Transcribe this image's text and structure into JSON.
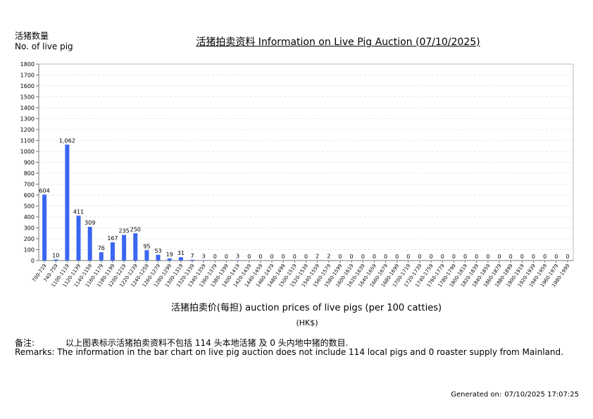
{
  "header": {
    "y_label_zh": "活猪数量",
    "y_label_en": "No. of live pig",
    "title": "活猪拍卖资料 Information on Live Pig Auction (07/10/2025)"
  },
  "axis": {
    "x_label": "活猪拍卖价(每担) auction prices of live pigs (per 100 catties)",
    "currency": "(HK$)"
  },
  "remarks": {
    "label_zh": "备注:",
    "text_zh": "以上图表标示活猪拍卖资料不包括 114 头本地活猪 及 0 头内地中猪的数目.",
    "text_en": "Remarks: The information in the bar chart on live pig auction does not include 114 local pigs and 0 roaster supply from Mainland."
  },
  "footer": {
    "generated_label": "Generated on:",
    "generated_value": "07/10/2025 17:07:25"
  },
  "chart_data": {
    "type": "bar",
    "title": "活猪拍卖资料 Information on Live Pig Auction (07/10/2025)",
    "xlabel": "活猪拍卖价(每担) auction prices of live pigs (per 100 catties)",
    "ylabel": "活猪数量 No. of live pig",
    "ylim": [
      0,
      1800
    ],
    "yticks": [
      0,
      100,
      200,
      300,
      400,
      500,
      600,
      700,
      800,
      900,
      1000,
      1100,
      1200,
      1300,
      1400,
      1500,
      1600,
      1700,
      1800
    ],
    "grid": true,
    "bar_color": "#3b66f0",
    "categories": [
      "700-719",
      "740-759",
      "1100-1119",
      "1120-1139",
      "1140-1159",
      "1160-1179",
      "1180-1199",
      "1200-1219",
      "1220-1239",
      "1240-1259",
      "1260-1279",
      "1280-1299",
      "1300-1319",
      "1320-1339",
      "1340-1359",
      "1360-1379",
      "1380-1399",
      "1400-1419",
      "1420-1439",
      "1440-1459",
      "1460-1479",
      "1480-1499",
      "1500-1519",
      "1520-1539",
      "1540-1559",
      "1560-1579",
      "1580-1599",
      "1600-1619",
      "1620-1639",
      "1640-1659",
      "1660-1679",
      "1680-1699",
      "1700-1719",
      "1720-1739",
      "1740-1759",
      "1760-1779",
      "1780-1799",
      "1800-1819",
      "1820-1839",
      "1840-1859",
      "1860-1879",
      "1880-1899",
      "1900-1919",
      "1920-1939",
      "1940-1959",
      "1960-1979",
      "1980-1999"
    ],
    "values": [
      604,
      10,
      1062,
      411,
      309,
      76,
      167,
      235,
      250,
      95,
      53,
      19,
      31,
      7,
      3,
      0,
      0,
      3,
      0,
      0,
      0,
      0,
      0,
      0,
      2,
      2,
      0,
      0,
      0,
      0,
      0,
      0,
      0,
      0,
      0,
      0,
      0,
      0,
      0,
      0,
      0,
      0,
      0,
      0,
      0,
      0,
      0
    ],
    "value_labels": [
      "604",
      "10",
      "1,062",
      "411",
      "309",
      "76",
      "167",
      "235",
      "250",
      "95",
      "53",
      "19",
      "31",
      "7",
      "3",
      "0",
      "0",
      "3",
      "0",
      "0",
      "0",
      "0",
      "0",
      "0",
      "2",
      "2",
      "0",
      "0",
      "0",
      "0",
      "0",
      "0",
      "0",
      "0",
      "0",
      "0",
      "0",
      "0",
      "0",
      "0",
      "0",
      "0",
      "0",
      "0",
      "0",
      "0",
      "0"
    ]
  }
}
